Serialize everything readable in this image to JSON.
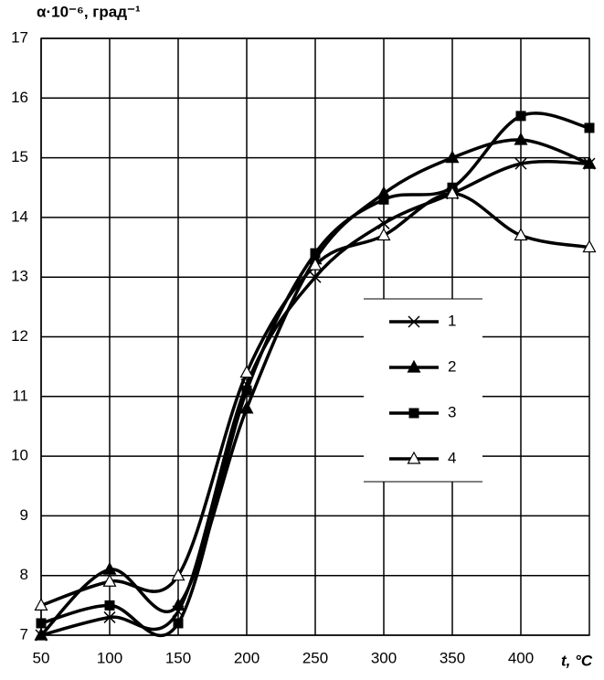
{
  "chart_data": {
    "type": "line",
    "y_label": "α·10⁻⁶, град⁻¹",
    "x_label": "t, °C",
    "x": [
      50,
      100,
      150,
      200,
      250,
      300,
      350,
      400,
      450
    ],
    "series": [
      {
        "name": "1",
        "color": "#000000",
        "marker": "x",
        "values": [
          7.0,
          7.3,
          7.4,
          11.2,
          13.0,
          13.9,
          14.4,
          14.9,
          14.9
        ]
      },
      {
        "name": "2",
        "color": "#000000",
        "marker": "triangle",
        "values": [
          7.0,
          8.1,
          7.5,
          10.8,
          13.3,
          14.4,
          15.0,
          15.3,
          14.9
        ]
      },
      {
        "name": "3",
        "color": "#000000",
        "marker": "square",
        "values": [
          7.2,
          7.5,
          7.2,
          11.1,
          13.4,
          14.3,
          14.5,
          15.7,
          15.5
        ]
      },
      {
        "name": "4",
        "color": "#000000",
        "marker": "triangle-open",
        "values": [
          7.5,
          7.9,
          8.0,
          11.4,
          13.2,
          13.7,
          14.4,
          13.7,
          13.5
        ]
      }
    ],
    "xlim": [
      50,
      450
    ],
    "xticks": [
      50,
      100,
      150,
      200,
      250,
      300,
      350,
      400
    ],
    "ylim": [
      7,
      17
    ],
    "yticks": [
      7,
      8,
      9,
      10,
      11,
      12,
      13,
      14,
      15,
      16,
      17
    ],
    "grid": true,
    "legend": "center-right"
  }
}
